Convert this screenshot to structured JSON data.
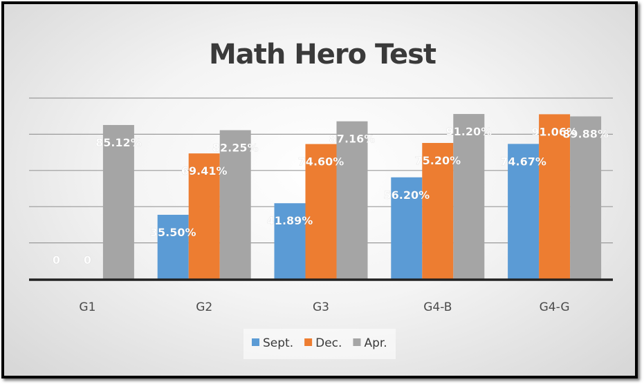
{
  "chart_data": {
    "type": "bar",
    "title": "Math Hero Test",
    "categories": [
      "G1",
      "G2",
      "G3",
      "G4-B",
      "G4-G"
    ],
    "series": [
      {
        "name": "Sept.",
        "color": "#5b9bd5",
        "values": [
          0,
          35.5,
          41.89,
          56.2,
          74.67
        ],
        "labels": [
          "0",
          "35.50%",
          "41.89%",
          "56.20%",
          "74.67%"
        ]
      },
      {
        "name": "Dec.",
        "color": "#ed7d31",
        "values": [
          0,
          69.41,
          74.6,
          75.2,
          91.06
        ],
        "labels": [
          "0",
          "69.41%",
          "74.60%",
          "75.20%",
          "91.06%"
        ]
      },
      {
        "name": "Apr.",
        "color": "#a5a5a5",
        "values": [
          85.12,
          82.25,
          87.16,
          91.2,
          89.88
        ],
        "labels": [
          "85.12%",
          "82.25%",
          "87.16%",
          "91.20%",
          "89.88%"
        ]
      }
    ],
    "ylim": [
      0,
      100
    ],
    "grid": true,
    "legend": "bottom",
    "xlabel": "",
    "ylabel": ""
  }
}
